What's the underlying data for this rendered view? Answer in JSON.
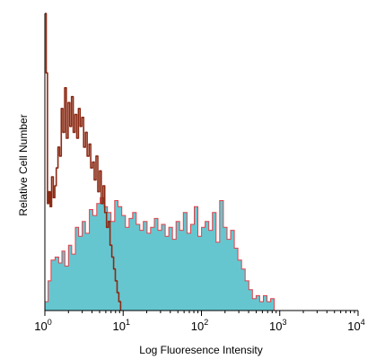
{
  "chart_data": {
    "type": "area",
    "xlabel": "Log Fluoresence Intensity",
    "ylabel": "Relative Cell Number",
    "x_scale": "log",
    "xlim": [
      1,
      10000
    ],
    "ylim": [
      0,
      100
    ],
    "x_ticks": [
      {
        "base": "10",
        "exp": "0"
      },
      {
        "base": "10",
        "exp": "1"
      },
      {
        "base": "10",
        "exp": "2"
      },
      {
        "base": "10",
        "exp": "3"
      },
      {
        "base": "10",
        "exp": "4"
      }
    ],
    "series": [
      {
        "fill": "#66c6cf",
        "edge": "#e0404a",
        "x": [
          1.0,
          1.1,
          1.2,
          1.35,
          1.5,
          1.65,
          1.8,
          2.0,
          2.2,
          2.45,
          2.7,
          3.0,
          3.3,
          3.7,
          4.1,
          4.6,
          5.1,
          5.7,
          6.3,
          7.0,
          7.8,
          8.6,
          9.6,
          10.7,
          11.9,
          13.2,
          14.7,
          16.3,
          18.1,
          20.2,
          22.4,
          25.0,
          27.8,
          30.9,
          34.4,
          38.3,
          42.6,
          47.4,
          52.7,
          58.7,
          65.3,
          72.7,
          80.9,
          90.0,
          100.2,
          111.5,
          124.1,
          138.1,
          153.7,
          171.0,
          190.4,
          211.9,
          235.8,
          262.4,
          292.0,
          325.0,
          361.7,
          402.5,
          448.0,
          498.5,
          554.8,
          617.4,
          687.1,
          764.7,
          851.0
        ],
        "values": [
          3,
          10,
          17,
          18,
          16,
          20,
          15,
          22,
          19,
          28,
          25,
          30,
          26,
          34,
          32,
          36,
          38,
          35,
          33,
          30,
          37,
          35,
          32,
          28,
          31,
          33,
          29,
          27,
          30,
          26,
          28,
          31,
          27,
          29,
          25,
          28,
          24,
          30,
          27,
          33,
          26,
          29,
          35,
          25,
          28,
          30,
          27,
          33,
          23,
          37,
          28,
          24,
          27,
          21,
          17,
          14,
          10,
          7,
          4,
          5,
          3,
          5,
          3,
          4,
          0
        ]
      },
      {
        "stroke": "#8b2a14",
        "x": [
          1.0,
          1.04,
          1.08,
          1.12,
          1.17,
          1.22,
          1.28,
          1.34,
          1.4,
          1.47,
          1.54,
          1.62,
          1.7,
          1.79,
          1.88,
          1.98,
          2.08,
          2.19,
          2.3,
          2.42,
          2.55,
          2.68,
          2.82,
          2.97,
          3.13,
          3.3,
          3.47,
          3.66,
          3.85,
          4.06,
          4.27,
          4.5,
          4.74,
          4.99,
          5.25,
          5.53,
          5.82,
          6.13,
          6.46,
          6.8,
          7.16,
          7.54,
          7.94,
          8.36,
          8.8,
          9.27
        ],
        "values": [
          100,
          80,
          36,
          40,
          35,
          45,
          38,
          42,
          48,
          55,
          52,
          68,
          60,
          75,
          58,
          70,
          62,
          72,
          60,
          66,
          58,
          68,
          62,
          65,
          55,
          60,
          52,
          56,
          48,
          50,
          44,
          52,
          40,
          47,
          36,
          42,
          33,
          28,
          30,
          22,
          18,
          14,
          10,
          6,
          3,
          0
        ]
      }
    ]
  }
}
